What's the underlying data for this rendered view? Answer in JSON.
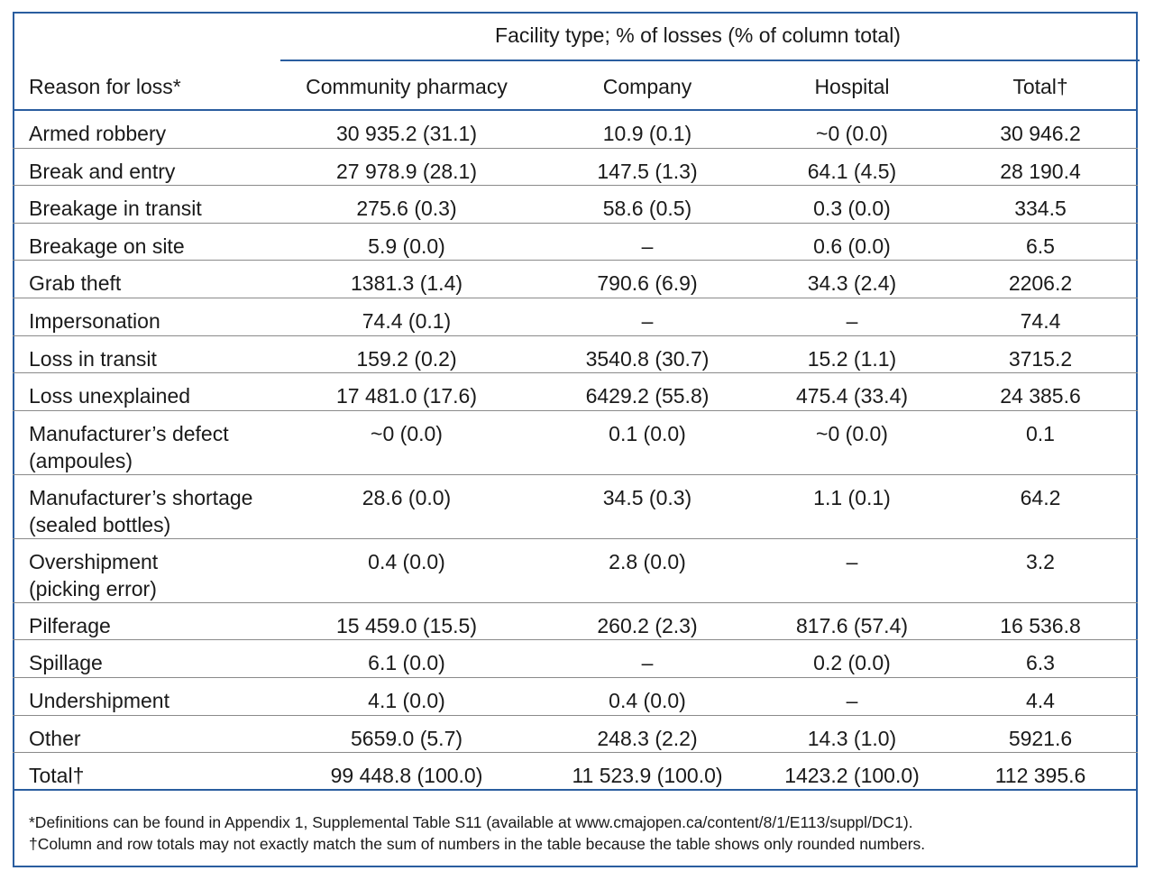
{
  "table": {
    "group_header": "Facility type; % of losses (% of column total)",
    "columns": {
      "reason": "Reason for loss*",
      "community_pharmacy": "Community pharmacy",
      "company": "Company",
      "hospital": "Hospital",
      "total": "Total†"
    },
    "rows": [
      {
        "reason": "Armed robbery",
        "community_pharmacy": "30 935.2 (31.1)",
        "company": "10.9 (0.1)",
        "hospital": "~0 (0.0)",
        "total": "30 946.2"
      },
      {
        "reason": "Break and entry",
        "community_pharmacy": "27 978.9 (28.1)",
        "company": "147.5 (1.3)",
        "hospital": "64.1 (4.5)",
        "total": "28 190.4"
      },
      {
        "reason": "Breakage in transit",
        "community_pharmacy": "275.6 (0.3)",
        "company": "58.6 (0.5)",
        "hospital": "0.3 (0.0)",
        "total": "334.5"
      },
      {
        "reason": "Breakage on site",
        "community_pharmacy": "5.9 (0.0)",
        "company": "–",
        "hospital": "0.6 (0.0)",
        "total": "6.5"
      },
      {
        "reason": "Grab theft",
        "community_pharmacy": "1381.3 (1.4)",
        "company": "790.6 (6.9)",
        "hospital": "34.3 (2.4)",
        "total": "2206.2"
      },
      {
        "reason": "Impersonation",
        "community_pharmacy": "74.4 (0.1)",
        "company": "–",
        "hospital": "–",
        "total": "74.4"
      },
      {
        "reason": "Loss in transit",
        "community_pharmacy": "159.2 (0.2)",
        "company": "3540.8 (30.7)",
        "hospital": "15.2 (1.1)",
        "total": "3715.2"
      },
      {
        "reason": "Loss unexplained",
        "community_pharmacy": "17 481.0 (17.6)",
        "company": "6429.2 (55.8)",
        "hospital": "475.4 (33.4)",
        "total": "24 385.6"
      },
      {
        "reason_line1": "Manufacturer’s defect",
        "reason_line2": "(ampoules)",
        "community_pharmacy": "~0 (0.0)",
        "company": "0.1 (0.0)",
        "hospital": "~0 (0.0)",
        "total": "0.1"
      },
      {
        "reason_line1": "Manufacturer’s shortage",
        "reason_line2": "(sealed bottles)",
        "community_pharmacy": "28.6 (0.0)",
        "company": "34.5 (0.3)",
        "hospital": "1.1 (0.1)",
        "total": "64.2"
      },
      {
        "reason_line1": "Overshipment",
        "reason_line2": "(picking error)",
        "community_pharmacy": "0.4 (0.0)",
        "company": "2.8 (0.0)",
        "hospital": "–",
        "total": "3.2"
      },
      {
        "reason": "Pilferage",
        "community_pharmacy": "15 459.0 (15.5)",
        "company": "260.2 (2.3)",
        "hospital": "817.6 (57.4)",
        "total": "16 536.8"
      },
      {
        "reason": "Spillage",
        "community_pharmacy": "6.1 (0.0)",
        "company": "–",
        "hospital": "0.2 (0.0)",
        "total": "6.3"
      },
      {
        "reason": "Undershipment",
        "community_pharmacy": "4.1 (0.0)",
        "company": "0.4 (0.0)",
        "hospital": "–",
        "total": "4.4"
      },
      {
        "reason": "Other",
        "community_pharmacy": "5659.0 (5.7)",
        "company": "248.3 (2.2)",
        "hospital": "14.3 (1.0)",
        "total": "5921.6"
      },
      {
        "reason": "Total†",
        "community_pharmacy": "99 448.8 (100.0)",
        "company": "11 523.9 (100.0)",
        "hospital": "1423.2 (100.0)",
        "total": "112 395.6"
      }
    ],
    "footnotes": [
      "*Definitions can be found in Appendix 1, Supplemental Table S11 (available at www.cmajopen.ca/content/8/1/E113/suppl/DC1).",
      "†Column and row totals may not exactly match the sum of numbers in the table because the table shows only rounded numbers."
    ]
  },
  "colors": {
    "rule": "#2a5d9f",
    "row_divider": "#8a8a8a",
    "text": "#1a1a1a"
  }
}
